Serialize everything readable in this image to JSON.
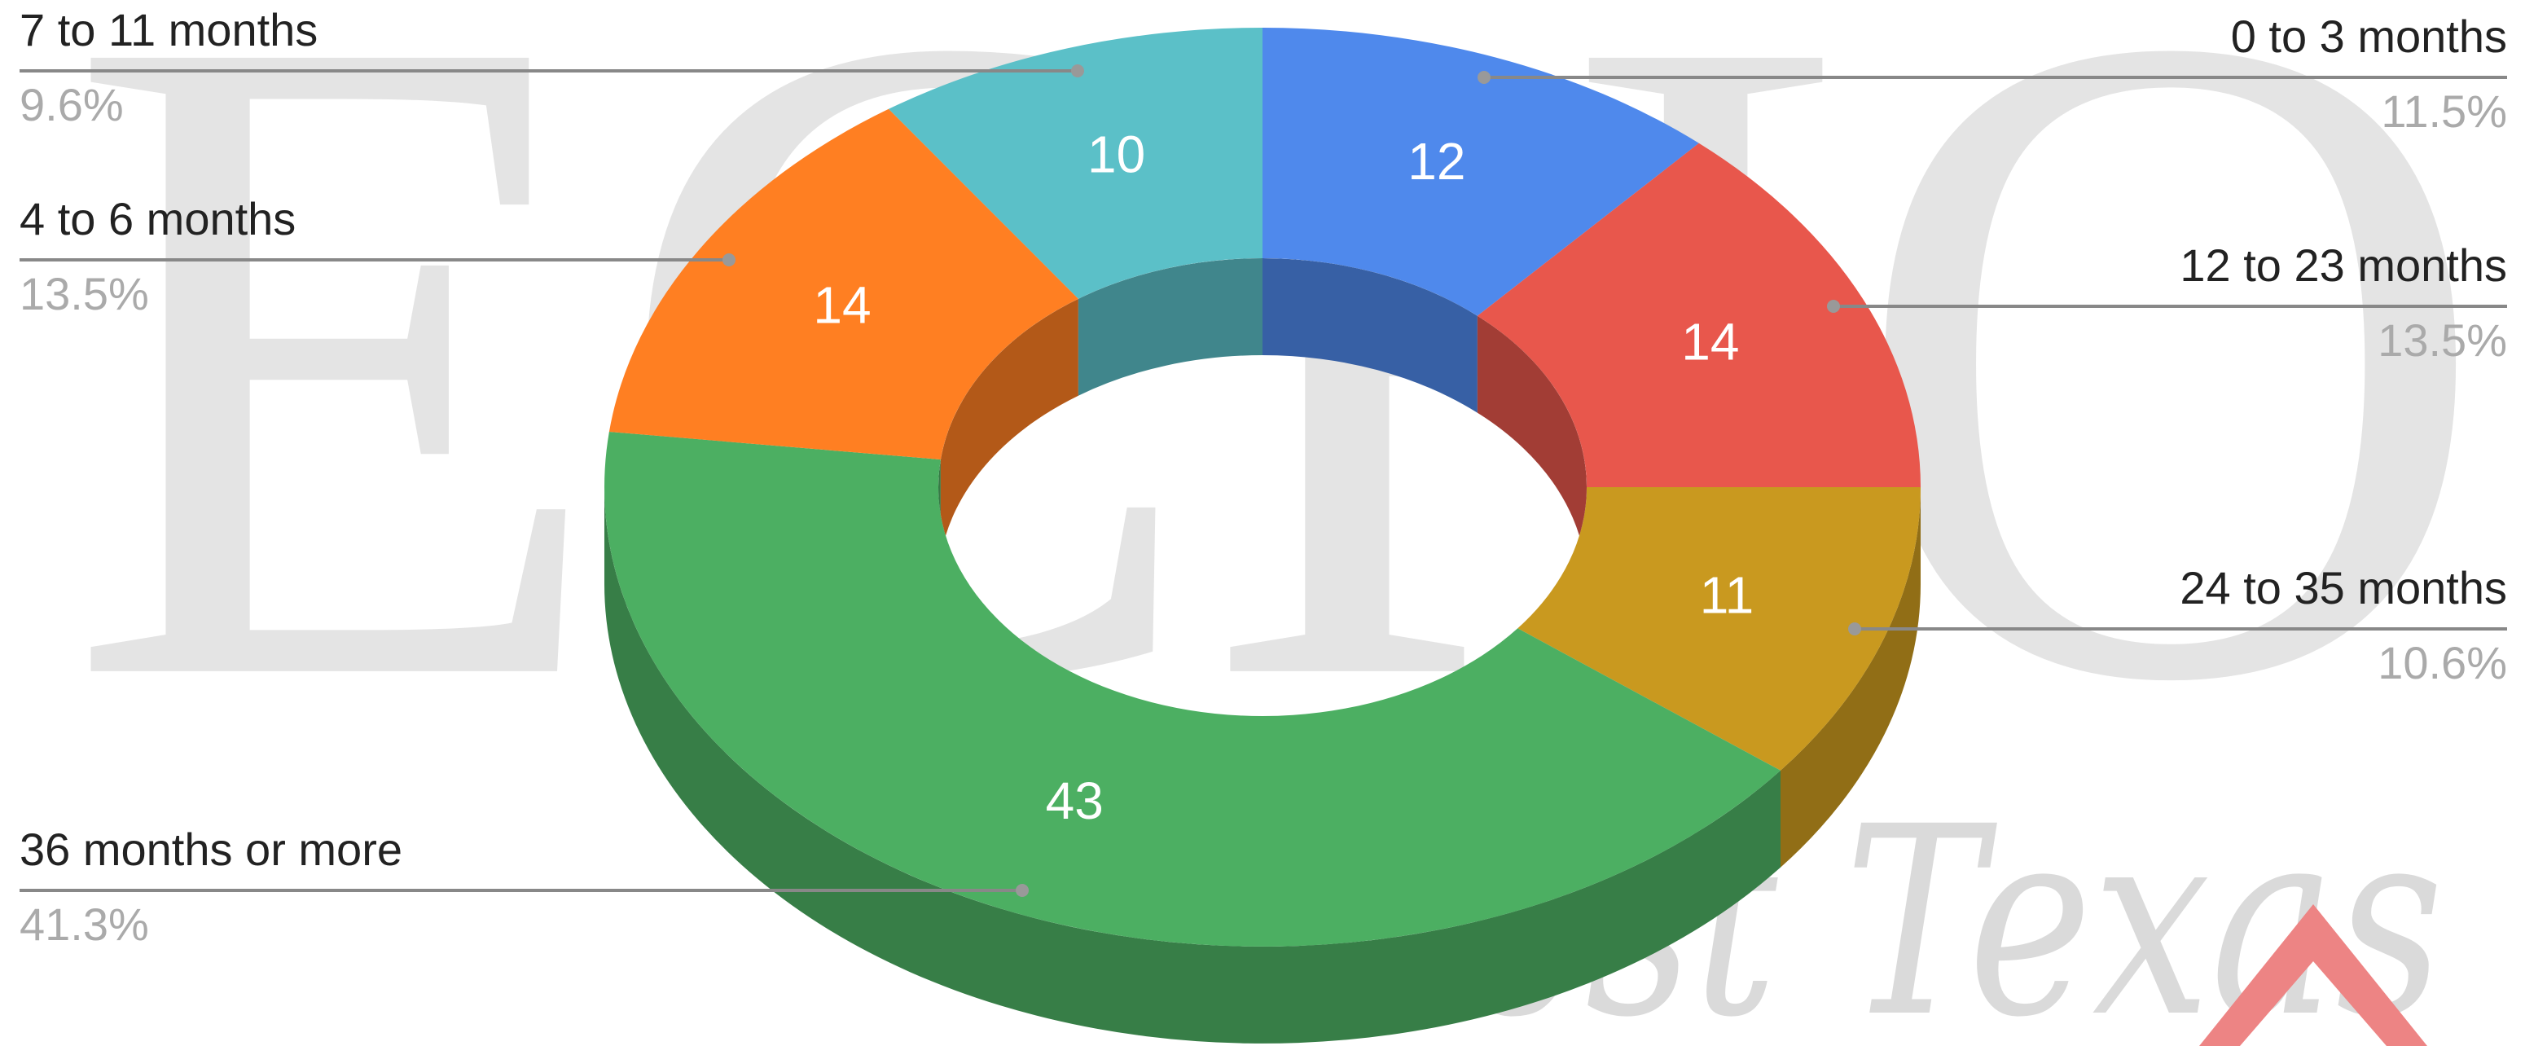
{
  "chart_data": {
    "type": "donut3d",
    "categories": [
      "0 to 3 months",
      "12 to 23 months",
      "24 to 35 months",
      "36 months or more",
      "4 to 6 months",
      "7 to 11 months"
    ],
    "values": [
      12,
      14,
      11,
      43,
      14,
      10
    ],
    "percent_labels": [
      "11.5%",
      "13.5%",
      "10.6%",
      "41.3%",
      "13.5%",
      "9.6%"
    ],
    "colors": [
      "#4f89ec",
      "#e8574c",
      "#c9991f",
      "#4caf62",
      "#ff7f22",
      "#5bc0c8"
    ],
    "watermark": "ECHO",
    "watermark_script": "West Texas"
  }
}
